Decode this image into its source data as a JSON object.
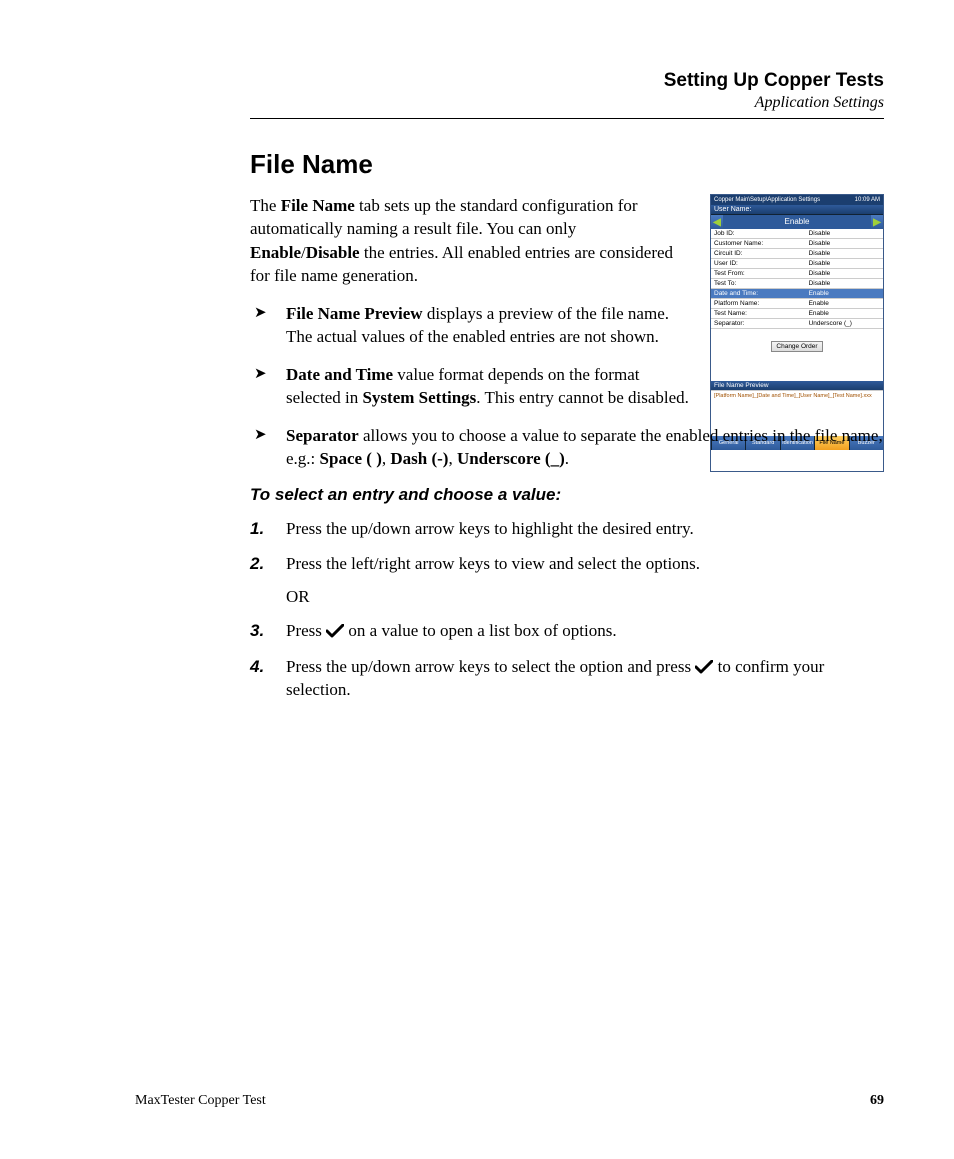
{
  "header": {
    "title": "Setting Up Copper Tests",
    "subtitle": "Application Settings"
  },
  "section_title": "File Name",
  "intro_parts": {
    "p1": "The ",
    "b1": "File Name",
    "p2": " tab sets up the standard configuration for automatically naming a result file. You can only ",
    "b2": "Enable",
    "p3": "/",
    "b3": "Disable",
    "p4": " the entries. All enabled entries are considered for file name generation."
  },
  "bullets": {
    "preview": {
      "b": "File Name Preview",
      "t": " displays a preview of the file name. The actual values of the enabled entries are not shown."
    },
    "datetime": {
      "b": "Date and Time",
      "t1": " value format depends on the format selected in ",
      "b2": "System Settings",
      "t2": ". This entry cannot be disabled."
    },
    "sep": {
      "b": "Separator",
      "t1": " allows you to choose a value to separate the enabled entries in the file name, e.g.: ",
      "s1": "Space ( )",
      "c1": ", ",
      "s2": "Dash (-)",
      "c2": ", ",
      "s3": "Underscore (_)",
      "p": "."
    }
  },
  "subhead": "To select an entry and choose a value:",
  "steps": {
    "s1": "Press the up/down arrow keys to highlight the desired entry.",
    "s2": "Press the left/right arrow keys to view and select the options.",
    "or": "OR",
    "s3a": "Press ",
    "s3b": " on a value to open a list box of options.",
    "s4a": "Press the up/down arrow keys to select the option and press ",
    "s4b": " to confirm your selection."
  },
  "screenshot": {
    "breadcrumb": "Copper Main\\Setup\\Application Settings",
    "clock": "10:09 AM",
    "field_label": "User Name:",
    "selected_value": "Enable",
    "rows": [
      {
        "k": "Job ID:",
        "v": "Disable",
        "hl": false
      },
      {
        "k": "Customer Name:",
        "v": "Disable",
        "hl": false
      },
      {
        "k": "Circuit ID:",
        "v": "Disable",
        "hl": false
      },
      {
        "k": "User ID:",
        "v": "Disable",
        "hl": false
      },
      {
        "k": "Test From:",
        "v": "Disable",
        "hl": false
      },
      {
        "k": "Test To:",
        "v": "Disable",
        "hl": false
      },
      {
        "k": "Date and Time:",
        "v": "Enable",
        "hl": true
      },
      {
        "k": "Platform Name:",
        "v": "Enable",
        "hl": false
      },
      {
        "k": "Test Name:",
        "v": "Enable",
        "hl": false
      }
    ],
    "separator": {
      "k": "Separator:",
      "v": "Underscore (_)"
    },
    "button": "Change Order",
    "preview_header": "File Name Preview",
    "preview_text": "[Platform Name]_[Date and Time]_[User Name]_[Test Name].xxx",
    "tabs": [
      "General",
      "Standard",
      "Identification",
      "File Name",
      "Buzzer"
    ],
    "active_tab": 3
  },
  "footer": {
    "left": "MaxTester Copper Test",
    "page": "69"
  }
}
